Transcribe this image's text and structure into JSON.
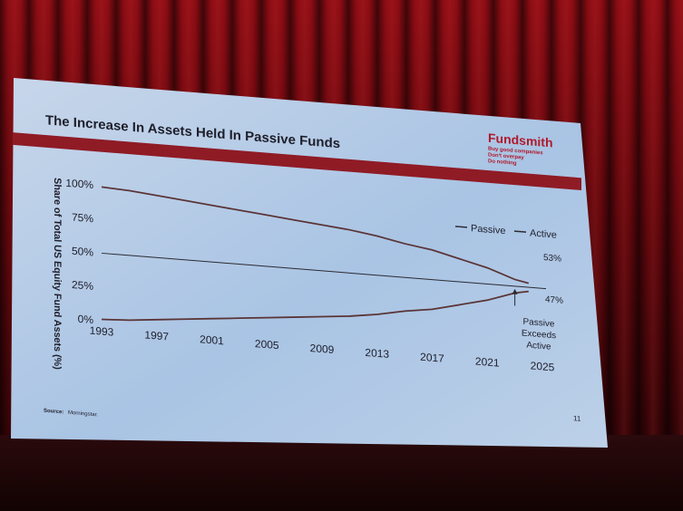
{
  "slide": {
    "title": "The Increase In Assets Held In Passive Funds",
    "brand": {
      "name": "Fundsmith",
      "tagline": [
        "Buy good companies",
        "Don't overpay",
        "Do nothing"
      ],
      "color": "#b0182a"
    },
    "source_label": "Source:",
    "source_text": "Morningstar.",
    "page_number": "11"
  },
  "chart_data": {
    "type": "line",
    "ylabel": "Share of Total US Equity Fund Assets (%)",
    "xlabel": "",
    "x_ticks": [
      "1993",
      "1997",
      "2001",
      "2005",
      "2009",
      "2013",
      "2017",
      "2021",
      "2025"
    ],
    "y_ticks": [
      "0%",
      "25%",
      "50%",
      "75%",
      "100%"
    ],
    "xlim": [
      1993,
      2025
    ],
    "ylim": [
      0,
      100
    ],
    "legend_position": "upper-right",
    "series": [
      {
        "name": "Passive",
        "color": "#5a3436",
        "x": [
          1993,
          1995,
          1997,
          1999,
          2001,
          2003,
          2005,
          2007,
          2009,
          2011,
          2013,
          2015,
          2017,
          2019,
          2021,
          2023,
          2024
        ],
        "values": [
          1,
          2,
          4,
          6,
          8,
          10,
          12,
          14,
          16,
          18,
          21,
          25,
          28,
          33,
          38,
          45,
          47
        ]
      },
      {
        "name": "Active",
        "color": "#5a3436",
        "x": [
          1993,
          1995,
          1997,
          1999,
          2001,
          2003,
          2005,
          2007,
          2009,
          2011,
          2013,
          2015,
          2017,
          2019,
          2021,
          2023,
          2024
        ],
        "values": [
          99,
          98,
          96,
          94,
          92,
          90,
          88,
          86,
          84,
          82,
          79,
          75,
          72,
          67,
          62,
          55,
          53
        ]
      }
    ],
    "reference_line": {
      "value": 50
    },
    "annotations": {
      "active_end": "53%",
      "passive_end": "47%",
      "crossover": [
        "Passive",
        "Exceeds",
        "Active"
      ],
      "crossover_x": 2023
    }
  }
}
